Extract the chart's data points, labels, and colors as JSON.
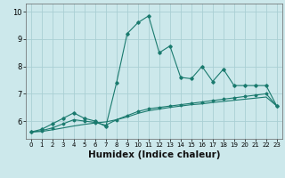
{
  "xlabel": "Humidex (Indice chaleur)",
  "x": [
    0,
    1,
    2,
    3,
    4,
    5,
    6,
    7,
    8,
    9,
    10,
    11,
    12,
    13,
    14,
    15,
    16,
    17,
    18,
    19,
    20,
    21,
    22,
    23
  ],
  "line1": [
    5.6,
    5.7,
    5.9,
    6.1,
    6.3,
    6.1,
    6.0,
    5.8,
    7.4,
    9.2,
    9.6,
    9.85,
    8.5,
    8.75,
    7.6,
    7.55,
    8.0,
    7.45,
    7.9,
    7.3,
    7.3,
    7.3,
    7.3,
    6.55
  ],
  "line2": [
    5.6,
    5.65,
    5.75,
    5.9,
    6.05,
    6.0,
    5.95,
    5.85,
    6.05,
    6.2,
    6.35,
    6.45,
    6.5,
    6.55,
    6.6,
    6.65,
    6.7,
    6.75,
    6.8,
    6.85,
    6.9,
    6.95,
    7.0,
    6.55
  ],
  "line3": [
    5.6,
    5.62,
    5.68,
    5.75,
    5.82,
    5.88,
    5.93,
    5.97,
    6.05,
    6.15,
    6.28,
    6.38,
    6.44,
    6.5,
    6.55,
    6.6,
    6.63,
    6.68,
    6.72,
    6.76,
    6.8,
    6.84,
    6.88,
    6.55
  ],
  "line_color": "#1a7a6e",
  "bg_color": "#cce8eb",
  "grid_color": "#aacfd4",
  "ylim": [
    5.35,
    10.3
  ],
  "xlim": [
    -0.5,
    23.5
  ],
  "tick_fontsize": 6,
  "label_fontsize": 7.5,
  "xticks": [
    0,
    1,
    2,
    3,
    4,
    5,
    6,
    7,
    8,
    9,
    10,
    11,
    12,
    13,
    14,
    15,
    16,
    17,
    18,
    19,
    20,
    21,
    22,
    23
  ],
  "yticks": [
    6,
    7,
    8,
    9,
    10
  ]
}
